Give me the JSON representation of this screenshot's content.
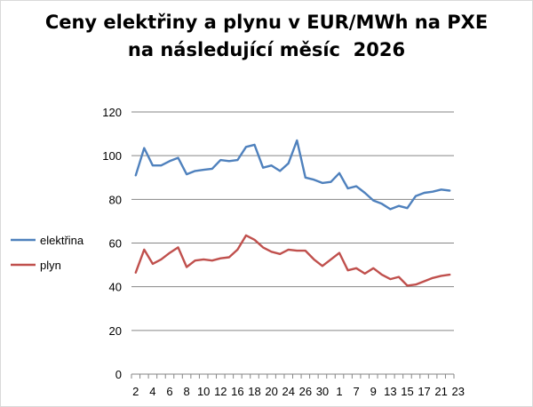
{
  "chart_data": {
    "type": "line",
    "title_lines": [
      "Ceny elektřiny a plynu v EUR/MWh na PXE",
      "na následující měsíc  2026"
    ],
    "xlabel": "",
    "ylabel": "",
    "ylim": [
      0,
      120
    ],
    "yticks": [
      "0",
      "20",
      "40",
      "60",
      "80",
      "100",
      "120"
    ],
    "x_tick_labels": [
      "2",
      "4",
      "6",
      "8",
      "10",
      "12",
      "16",
      "18",
      "20",
      "24",
      "26",
      "30",
      "1",
      "7",
      "9",
      "13",
      "15",
      "17",
      "21",
      "23"
    ],
    "grid": "horizontal",
    "legend_position": "left",
    "series": [
      {
        "name": "elektřina",
        "color": "#4f81bd",
        "values": [
          91,
          103.5,
          95.5,
          95.5,
          97.5,
          99,
          91.5,
          93,
          93.5,
          94,
          98,
          97.5,
          98,
          104,
          105,
          94.5,
          95.5,
          93,
          96.5,
          107,
          90,
          89,
          87.5,
          88,
          92,
          85,
          86,
          83,
          79.5,
          78,
          75.5,
          77,
          76,
          81.5,
          83,
          83.5,
          84.5,
          84
        ]
      },
      {
        "name": "plyn",
        "color": "#c0504d",
        "values": [
          46.5,
          57,
          50.5,
          52.5,
          55.5,
          58,
          49,
          52,
          52.5,
          52,
          53,
          53.5,
          57,
          63.5,
          61.5,
          58,
          56,
          55,
          57,
          56.5,
          56.5,
          52.5,
          49.5,
          52.5,
          55.5,
          47.5,
          48.5,
          46,
          48.5,
          45.5,
          43.5,
          44.5,
          40.5,
          41,
          42.5,
          44,
          45,
          45.5
        ]
      }
    ]
  }
}
